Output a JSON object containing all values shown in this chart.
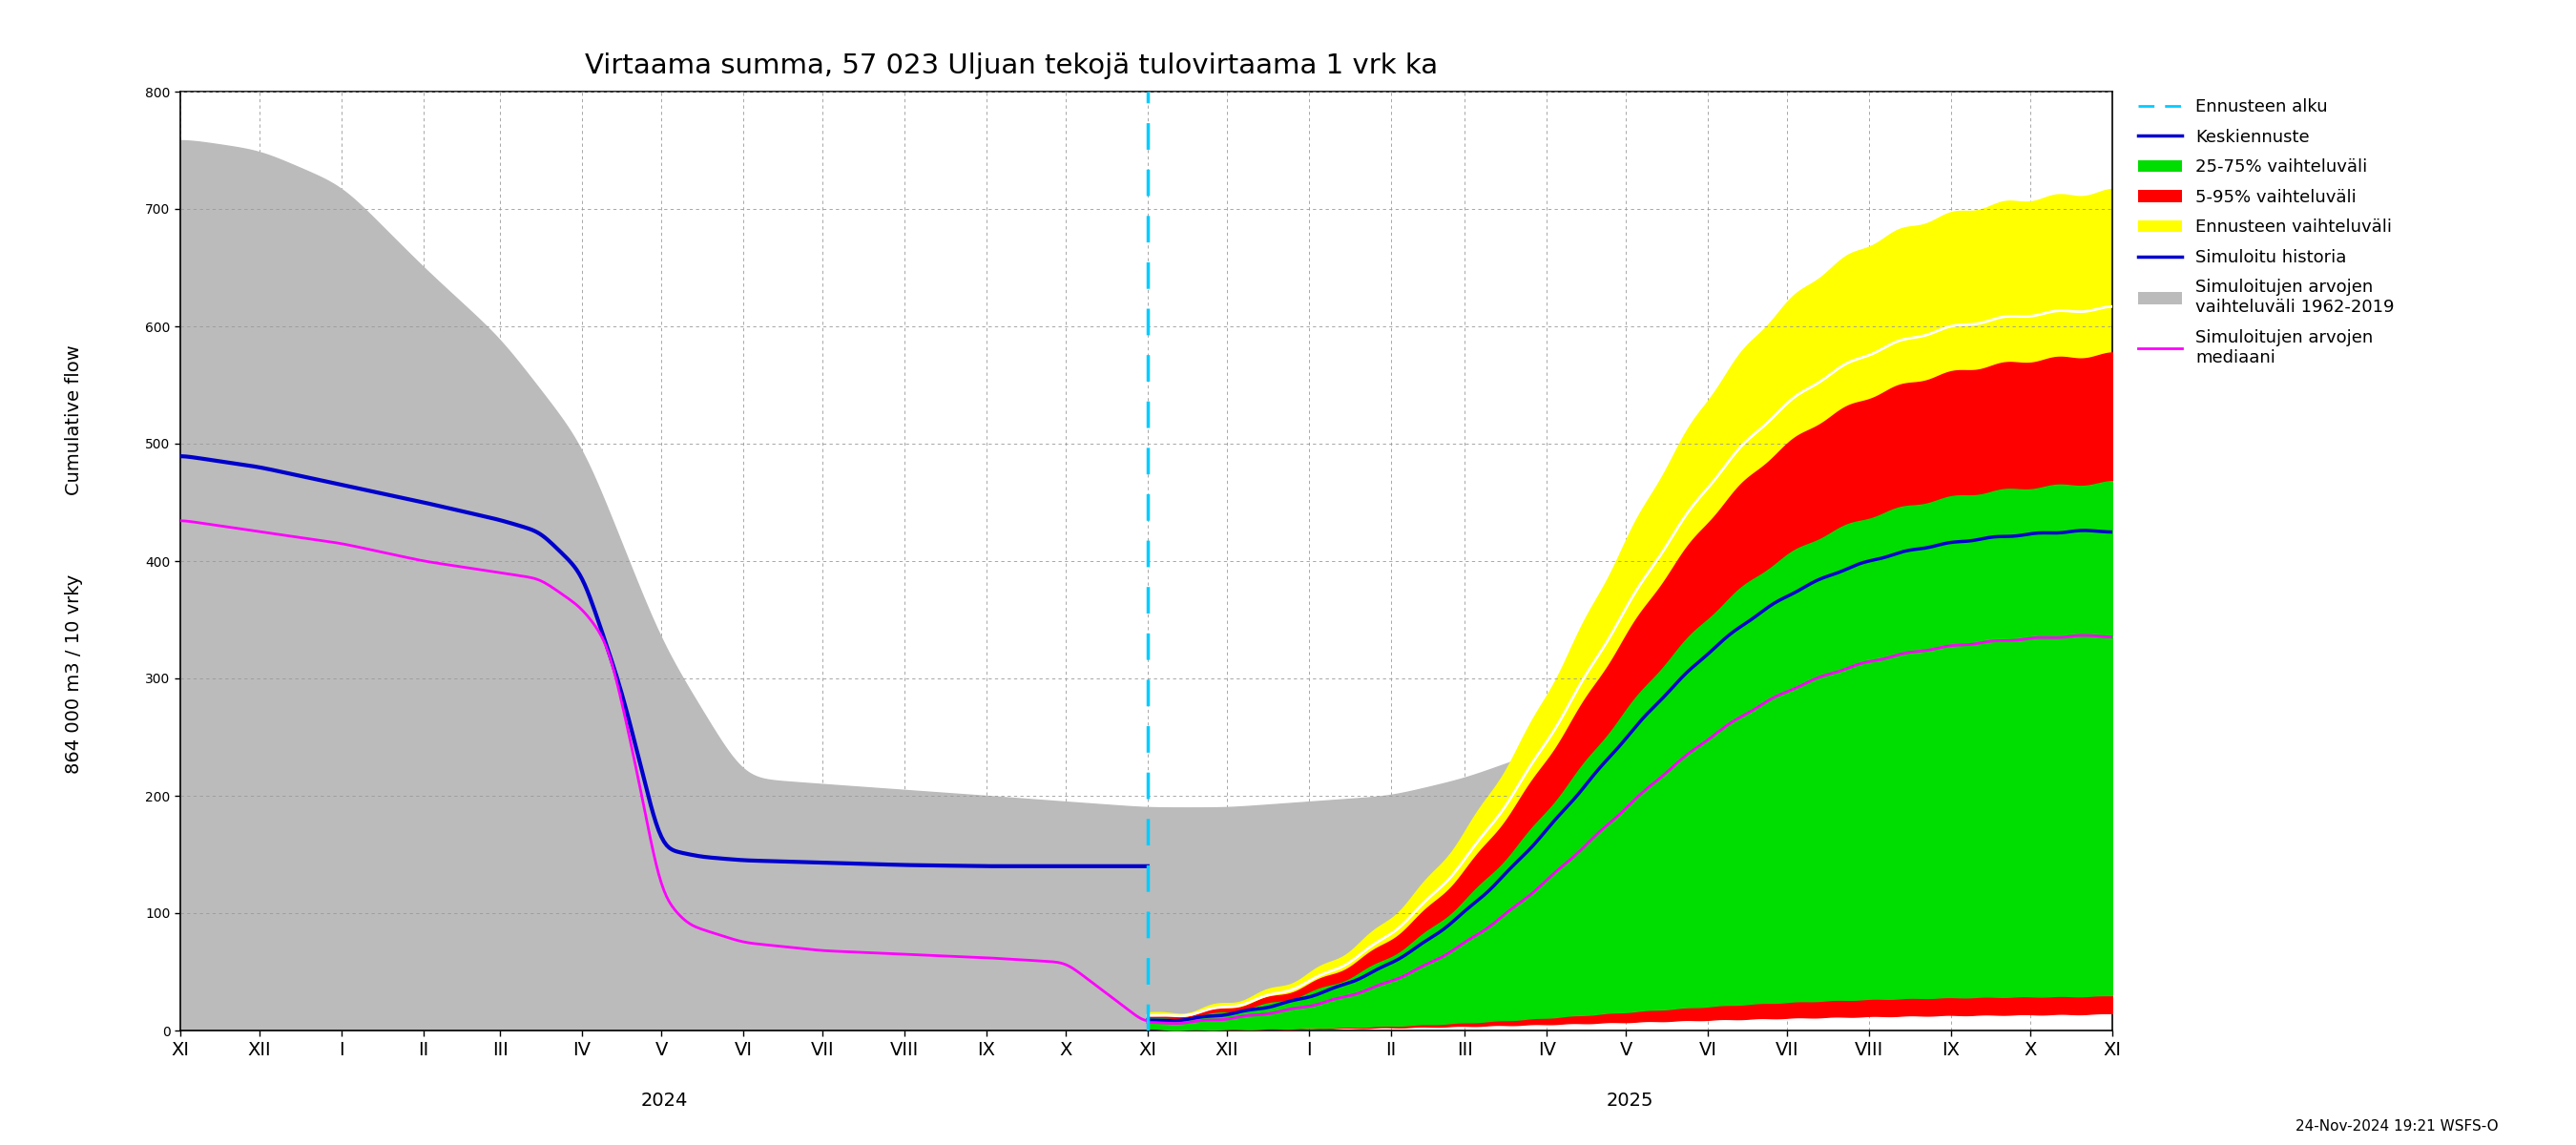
{
  "title": "Virtaama summa, 57 023 Uljuan tekojä tulovirtaama 1 vrk ka",
  "ylabel_top": "Cumulative flow",
  "ylabel_bot": "864 000 m3 / 10 vrky",
  "ylim": [
    0,
    800
  ],
  "yticks": [
    0,
    100,
    200,
    300,
    400,
    500,
    600,
    700,
    800
  ],
  "bg": "#ffffff",
  "grid_color": "#999999",
  "timestamp": "24-Nov-2024 19:21 WSFS-O",
  "color_grey": "#bbbbbb",
  "color_yellow": "#ffff00",
  "color_red": "#ff0000",
  "color_green": "#00dd00",
  "color_blue": "#0000cc",
  "color_magenta": "#ff00ff",
  "color_white": "#ffffff",
  "color_cyan": "#00ccff"
}
